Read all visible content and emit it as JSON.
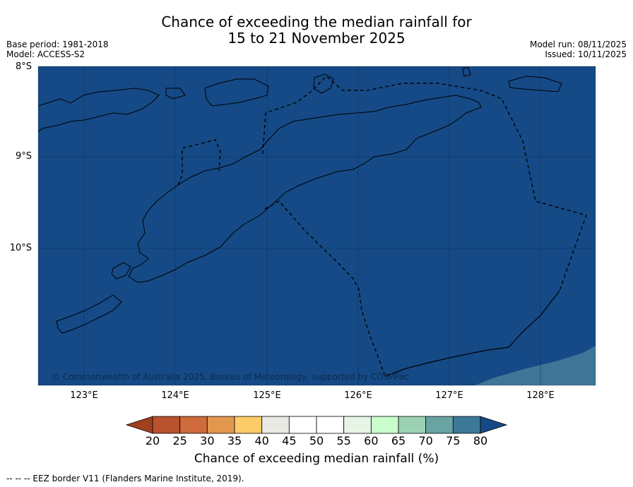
{
  "header": {
    "title_line1": "Chance of exceeding the median rainfall for",
    "title_line2": "15 to 21 November 2025",
    "base_period": "Base period: 1981-2018",
    "model": "Model: ACCESS-S2",
    "model_run": "Model run: 08/11/2025",
    "issued": "Issued: 10/11/2025"
  },
  "map": {
    "lat_labels": [
      "8°S",
      "9°S",
      "10°S"
    ],
    "lon_labels": [
      "123°E",
      "124°E",
      "125°E",
      "126°E",
      "127°E",
      "128°E"
    ],
    "ocean_color": "#154a86",
    "lower_band_color": "#3f7596",
    "copyright": "© Commonwealth of Australia 2025, Bureau of Meteorology, supported by COSPPac"
  },
  "colorbar": {
    "ticks": [
      "20",
      "25",
      "30",
      "35",
      "40",
      "45",
      "50",
      "55",
      "60",
      "65",
      "70",
      "75",
      "80"
    ],
    "colors": [
      "#a0401f",
      "#b8522f",
      "#cf6a3a",
      "#e2974f",
      "#fdcb68",
      "#e9e9e3",
      "#ffffff",
      "#ffffff",
      "#e6f5e6",
      "#c9fdcb",
      "#9cd2b4",
      "#69a3a2",
      "#3e7898",
      "#154a86"
    ],
    "label": "Chance of exceeding median rainfall (%)"
  },
  "footnote": "--  --  -- EEZ border V11 (Flanders Marine Institute, 2019)."
}
